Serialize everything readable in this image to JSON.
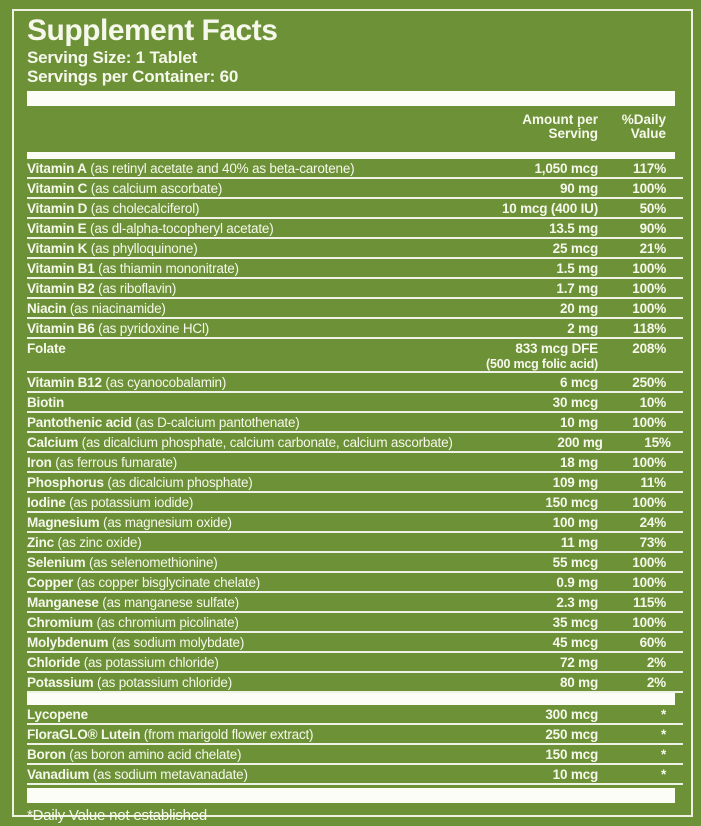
{
  "label": {
    "title": "Supplement Facts",
    "serving_size": "Serving Size: 1 Tablet",
    "servings_per_container": "Servings per Container: 60",
    "columns": {
      "amount_line1": "Amount per",
      "amount_line2": "Serving",
      "dv_line1": "%Daily",
      "dv_line2": "Value"
    },
    "footnote": "*Daily Value not established",
    "colors": {
      "background_green": "#6C9136",
      "text_offwhite": "#F6F8EC",
      "bar_white": "#FDFDF8"
    }
  },
  "rows": [
    {
      "name": "Vitamin A",
      "detail": "(as retinyl acetate and 40% as beta-carotene)",
      "amount": "1,050 mcg",
      "dv": "117%"
    },
    {
      "name": "Vitamin C",
      "detail": "(as calcium ascorbate)",
      "amount": "90 mg",
      "dv": "100%"
    },
    {
      "name": "Vitamin D",
      "detail": "(as cholecalciferol)",
      "amount": "10 mcg (400 IU)",
      "dv": "50%"
    },
    {
      "name": "Vitamin E",
      "detail": "(as dl-alpha-tocopheryl acetate)",
      "amount": "13.5 mg",
      "dv": "90%"
    },
    {
      "name": "Vitamin K",
      "detail": "(as phylloquinone)",
      "amount": "25 mcg",
      "dv": "21%"
    },
    {
      "name": "Vitamin B1",
      "detail": "(as thiamin mononitrate)",
      "amount": "1.5 mg",
      "dv": "100%"
    },
    {
      "name": "Vitamin B2",
      "detail": "(as riboflavin)",
      "amount": "1.7 mg",
      "dv": "100%"
    },
    {
      "name": "Niacin",
      "detail": "(as niacinamide)",
      "amount": "20 mg",
      "dv": "100%"
    },
    {
      "name": "Vitamin B6",
      "detail": "(as pyridoxine HCl)",
      "amount": "2 mg",
      "dv": "118%"
    },
    {
      "name": "Folate",
      "detail": "",
      "amount": "833 mcg DFE",
      "amount_note": "(500 mcg folic acid)",
      "dv": "208%"
    },
    {
      "name": "Vitamin B12",
      "detail": "(as cyanocobalamin)",
      "amount": "6 mcg",
      "dv": "250%"
    },
    {
      "name": "Biotin",
      "detail": "",
      "amount": "30 mcg",
      "dv": "10%"
    },
    {
      "name": "Pantothenic acid",
      "detail": "(as D-calcium pantothenate)",
      "amount": "10 mg",
      "dv": "100%"
    },
    {
      "name": "Calcium",
      "detail": "(as dicalcium phosphate, calcium carbonate, calcium ascorbate)",
      "amount": "200 mg",
      "dv": "15%"
    },
    {
      "name": "Iron",
      "detail": "(as ferrous fumarate)",
      "amount": "18 mg",
      "dv": "100%"
    },
    {
      "name": "Phosphorus",
      "detail": "(as dicalcium phosphate)",
      "amount": "109 mg",
      "dv": "11%"
    },
    {
      "name": "Iodine",
      "detail": "(as potassium iodide)",
      "amount": "150 mcg",
      "dv": "100%"
    },
    {
      "name": "Magnesium",
      "detail": "(as magnesium oxide)",
      "amount": "100 mg",
      "dv": "24%"
    },
    {
      "name": "Zinc",
      "detail": "(as zinc oxide)",
      "amount": "11 mg",
      "dv": "73%"
    },
    {
      "name": "Selenium",
      "detail": "(as selenomethionine)",
      "amount": "55 mcg",
      "dv": "100%"
    },
    {
      "name": "Copper",
      "detail": "(as copper bisglycinate chelate)",
      "amount": "0.9 mg",
      "dv": "100%"
    },
    {
      "name": "Manganese",
      "detail": "(as manganese sulfate)",
      "amount": "2.3 mg",
      "dv": "115%"
    },
    {
      "name": "Chromium",
      "detail": "(as chromium picolinate)",
      "amount": "35 mcg",
      "dv": "100%"
    },
    {
      "name": "Molybdenum",
      "detail": "(as sodium molybdate)",
      "amount": "45 mcg",
      "dv": "60%"
    },
    {
      "name": "Chloride",
      "detail": "(as potassium chloride)",
      "amount": "72 mg",
      "dv": "2%"
    },
    {
      "name": "Potassium",
      "detail": "(as potassium chloride)",
      "amount": "80 mg",
      "dv": "2%"
    }
  ],
  "other_rows": [
    {
      "name": "Lycopene",
      "detail": "",
      "amount": "300 mcg",
      "dv": "*"
    },
    {
      "name": "FloraGLO® Lutein",
      "detail": "(from marigold flower extract)",
      "amount": "250 mcg",
      "dv": "*"
    },
    {
      "name": "Boron",
      "detail": "(as boron amino acid chelate)",
      "amount": "150 mcg",
      "dv": "*"
    },
    {
      "name": "Vanadium",
      "detail": "(as sodium metavanadate)",
      "amount": "10 mcg",
      "dv": "*"
    }
  ]
}
